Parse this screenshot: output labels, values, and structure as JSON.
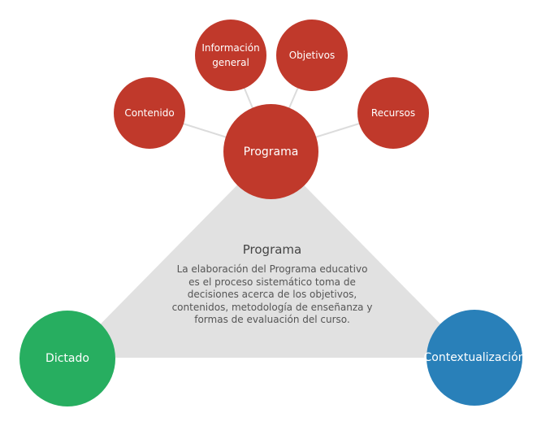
{
  "colors": {
    "program": "#c0392b",
    "dictado": "#27ae60",
    "contextualizacion": "#2980b9",
    "triangle": "#e1e1e1",
    "connector": "#dcdcdc"
  },
  "nodes": {
    "center": "Programa",
    "info": "Información general",
    "objetivos": "Objetivos",
    "contenido": "Contenido",
    "recursos": "Recursos",
    "dictado": "Dictado",
    "contextualizacion": "Contextualización"
  },
  "panel": {
    "title": "Programa",
    "body": "La elaboración del Programa educativo es el proceso sistemático toma de decisiones acerca de los objetivos, contenidos, metodología de enseñanza y formas de evaluación del curso."
  }
}
